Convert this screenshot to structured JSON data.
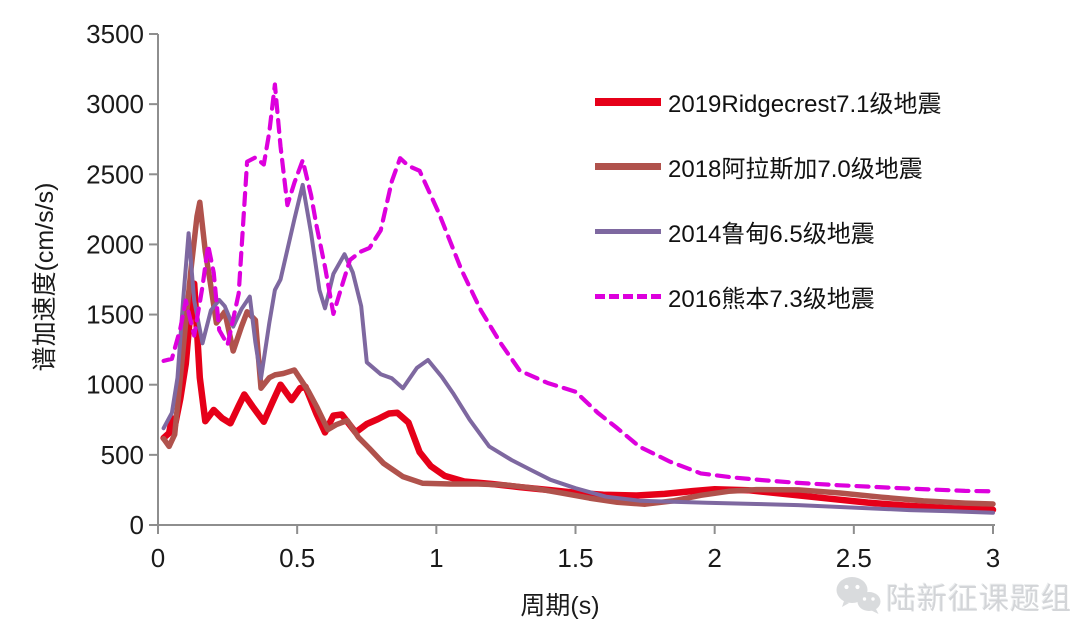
{
  "axes": {
    "x_label": "周期(s)",
    "y_label": "谱加速度(cm/s/s)",
    "x_tick_labels": [
      "0",
      "0.5",
      "1",
      "1.5",
      "2",
      "2.5",
      "3"
    ],
    "y_tick_labels": [
      "0",
      "500",
      "1000",
      "1500",
      "2000",
      "2500",
      "3000",
      "3500"
    ],
    "axis_color": "#8e8e8e",
    "tick_text_color": "#1a1a1a"
  },
  "watermark": {
    "text": "陆新征课题组",
    "icon": "wechat-icon",
    "color": "#d3d5d8"
  },
  "chart_data": {
    "type": "line",
    "title": "",
    "xlabel": "周期(s)",
    "ylabel": "谱加速度(cm/s/s)",
    "xlim": [
      0,
      3
    ],
    "ylim": [
      0,
      3500
    ],
    "x_ticks": [
      0,
      0.5,
      1,
      1.5,
      2,
      2.5,
      3
    ],
    "y_ticks": [
      0,
      500,
      1000,
      1500,
      2000,
      2500,
      3000,
      3500
    ],
    "grid": false,
    "legend_position": "right-top",
    "series": [
      {
        "name": "2019Ridgecrest7.1级地震",
        "color": "#e60019",
        "style": "solid",
        "points": [
          [
            0.02,
            620
          ],
          [
            0.04,
            655
          ],
          [
            0.05,
            760
          ],
          [
            0.06,
            700
          ],
          [
            0.08,
            900
          ],
          [
            0.1,
            1150
          ],
          [
            0.12,
            1600
          ],
          [
            0.13,
            1720
          ],
          [
            0.15,
            1050
          ],
          [
            0.17,
            740
          ],
          [
            0.2,
            820
          ],
          [
            0.23,
            762
          ],
          [
            0.26,
            725
          ],
          [
            0.29,
            850
          ],
          [
            0.31,
            930
          ],
          [
            0.34,
            845
          ],
          [
            0.38,
            736
          ],
          [
            0.41,
            870
          ],
          [
            0.44,
            1000
          ],
          [
            0.48,
            890
          ],
          [
            0.51,
            975
          ],
          [
            0.53,
            985
          ],
          [
            0.57,
            790
          ],
          [
            0.6,
            660
          ],
          [
            0.63,
            780
          ],
          [
            0.66,
            788
          ],
          [
            0.71,
            660
          ],
          [
            0.75,
            720
          ],
          [
            0.79,
            755
          ],
          [
            0.83,
            795
          ],
          [
            0.86,
            800
          ],
          [
            0.9,
            730
          ],
          [
            0.94,
            520
          ],
          [
            0.98,
            420
          ],
          [
            1.03,
            350
          ],
          [
            1.1,
            310
          ],
          [
            1.2,
            292
          ],
          [
            1.3,
            270
          ],
          [
            1.4,
            250
          ],
          [
            1.5,
            230
          ],
          [
            1.6,
            215
          ],
          [
            1.72,
            210
          ],
          [
            1.82,
            222
          ],
          [
            1.92,
            242
          ],
          [
            2.0,
            255
          ],
          [
            2.12,
            248
          ],
          [
            2.25,
            222
          ],
          [
            2.4,
            190
          ],
          [
            2.55,
            160
          ],
          [
            2.7,
            136
          ],
          [
            2.85,
            120
          ],
          [
            3.0,
            108
          ]
        ]
      },
      {
        "name": "2018阿拉斯加7.0级地震",
        "color": "#b0524c",
        "style": "solid",
        "points": [
          [
            0.02,
            615
          ],
          [
            0.04,
            560
          ],
          [
            0.06,
            645
          ],
          [
            0.08,
            1050
          ],
          [
            0.1,
            1450
          ],
          [
            0.12,
            1850
          ],
          [
            0.14,
            2200
          ],
          [
            0.15,
            2300
          ],
          [
            0.17,
            1950
          ],
          [
            0.19,
            1700
          ],
          [
            0.21,
            1440
          ],
          [
            0.24,
            1520
          ],
          [
            0.27,
            1240
          ],
          [
            0.3,
            1415
          ],
          [
            0.32,
            1520
          ],
          [
            0.35,
            1460
          ],
          [
            0.37,
            975
          ],
          [
            0.4,
            1050
          ],
          [
            0.42,
            1070
          ],
          [
            0.45,
            1080
          ],
          [
            0.49,
            1105
          ],
          [
            0.54,
            955
          ],
          [
            0.57,
            845
          ],
          [
            0.61,
            680
          ],
          [
            0.64,
            715
          ],
          [
            0.68,
            745
          ],
          [
            0.72,
            625
          ],
          [
            0.76,
            545
          ],
          [
            0.81,
            440
          ],
          [
            0.88,
            345
          ],
          [
            0.95,
            298
          ],
          [
            1.05,
            292
          ],
          [
            1.15,
            292
          ],
          [
            1.25,
            285
          ],
          [
            1.35,
            262
          ],
          [
            1.45,
            228
          ],
          [
            1.55,
            192
          ],
          [
            1.65,
            162
          ],
          [
            1.75,
            148
          ],
          [
            1.85,
            172
          ],
          [
            1.95,
            212
          ],
          [
            2.05,
            240
          ],
          [
            2.15,
            252
          ],
          [
            2.3,
            250
          ],
          [
            2.45,
            228
          ],
          [
            2.6,
            198
          ],
          [
            2.75,
            172
          ],
          [
            2.9,
            156
          ],
          [
            3.0,
            150
          ]
        ]
      },
      {
        "name": "2014鲁甸6.5级地震",
        "color": "#7e68a0",
        "style": "solid",
        "points": [
          [
            0.02,
            690
          ],
          [
            0.05,
            800
          ],
          [
            0.07,
            1050
          ],
          [
            0.09,
            1600
          ],
          [
            0.11,
            2080
          ],
          [
            0.13,
            1600
          ],
          [
            0.16,
            1295
          ],
          [
            0.19,
            1530
          ],
          [
            0.22,
            1604
          ],
          [
            0.24,
            1560
          ],
          [
            0.27,
            1414
          ],
          [
            0.3,
            1540
          ],
          [
            0.33,
            1628
          ],
          [
            0.35,
            1300
          ],
          [
            0.37,
            1046
          ],
          [
            0.4,
            1440
          ],
          [
            0.42,
            1675
          ],
          [
            0.44,
            1750
          ],
          [
            0.49,
            2180
          ],
          [
            0.52,
            2424
          ],
          [
            0.55,
            2080
          ],
          [
            0.58,
            1675
          ],
          [
            0.6,
            1545
          ],
          [
            0.63,
            1790
          ],
          [
            0.67,
            1930
          ],
          [
            0.7,
            1800
          ],
          [
            0.73,
            1560
          ],
          [
            0.75,
            1160
          ],
          [
            0.8,
            1075
          ],
          [
            0.84,
            1046
          ],
          [
            0.88,
            975
          ],
          [
            0.93,
            1120
          ],
          [
            0.97,
            1176
          ],
          [
            1.02,
            1055
          ],
          [
            1.06,
            940
          ],
          [
            1.12,
            750
          ],
          [
            1.19,
            560
          ],
          [
            1.27,
            463
          ],
          [
            1.34,
            392
          ],
          [
            1.41,
            322
          ],
          [
            1.5,
            262
          ],
          [
            1.61,
            202
          ],
          [
            1.73,
            173
          ],
          [
            1.85,
            166
          ],
          [
            1.97,
            158
          ],
          [
            2.15,
            150
          ],
          [
            2.3,
            142
          ],
          [
            2.5,
            124
          ],
          [
            2.7,
            106
          ],
          [
            2.85,
            98
          ],
          [
            3.0,
            88
          ]
        ]
      },
      {
        "name": "2016熊本7.3级地震",
        "color": "#dd00dd",
        "style": "dashed",
        "points": [
          [
            0.02,
            1170
          ],
          [
            0.05,
            1185
          ],
          [
            0.08,
            1400
          ],
          [
            0.1,
            1600
          ],
          [
            0.13,
            1350
          ],
          [
            0.16,
            1700
          ],
          [
            0.18,
            1995
          ],
          [
            0.2,
            1800
          ],
          [
            0.22,
            1390
          ],
          [
            0.25,
            1285
          ],
          [
            0.29,
            1650
          ],
          [
            0.32,
            2590
          ],
          [
            0.35,
            2620
          ],
          [
            0.38,
            2570
          ],
          [
            0.4,
            2800
          ],
          [
            0.42,
            3140
          ],
          [
            0.44,
            2700
          ],
          [
            0.465,
            2280
          ],
          [
            0.49,
            2440
          ],
          [
            0.52,
            2600
          ],
          [
            0.55,
            2350
          ],
          [
            0.57,
            2130
          ],
          [
            0.6,
            1840
          ],
          [
            0.63,
            1505
          ],
          [
            0.66,
            1700
          ],
          [
            0.69,
            1890
          ],
          [
            0.73,
            1950
          ],
          [
            0.76,
            1975
          ],
          [
            0.8,
            2100
          ],
          [
            0.84,
            2450
          ],
          [
            0.87,
            2615
          ],
          [
            0.9,
            2560
          ],
          [
            0.94,
            2525
          ],
          [
            1.01,
            2220
          ],
          [
            1.09,
            1820
          ],
          [
            1.16,
            1530
          ],
          [
            1.23,
            1300
          ],
          [
            1.3,
            1100
          ],
          [
            1.4,
            1012
          ],
          [
            1.5,
            950
          ],
          [
            1.58,
            800
          ],
          [
            1.65,
            690
          ],
          [
            1.73,
            558
          ],
          [
            1.84,
            451
          ],
          [
            1.95,
            368
          ],
          [
            2.06,
            340
          ],
          [
            2.17,
            320
          ],
          [
            2.3,
            300
          ],
          [
            2.45,
            283
          ],
          [
            2.67,
            262
          ],
          [
            2.9,
            243
          ],
          [
            3.0,
            240
          ]
        ]
      }
    ]
  }
}
